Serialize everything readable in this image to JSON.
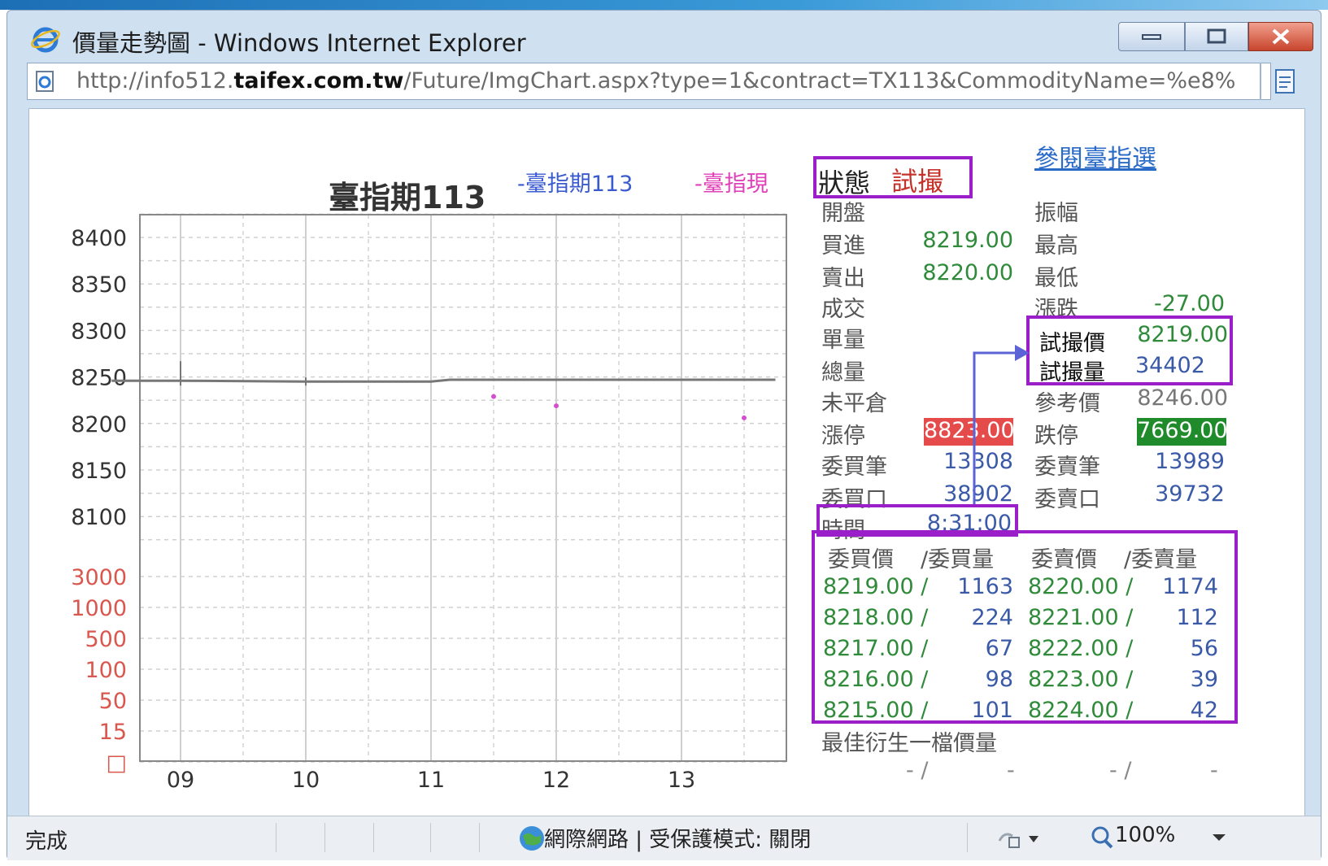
{
  "window": {
    "title": "價量走勢圖 - Windows Internet Explorer",
    "address": {
      "prefix": "http://info512.",
      "domain": "taifex.com.tw",
      "suffix": "/Future/ImgChart.aspx?type=1&contract=TX113&CommodityName=%e8%"
    }
  },
  "status_bar": {
    "done": "完成",
    "zone": "網際網路 | 受保護模式: 關閉",
    "zoom": "100%"
  },
  "chart": {
    "title": "臺指期113",
    "legend": [
      {
        "label": "-臺指期113",
        "color": "#3a5ad0"
      },
      {
        "label": "-臺指現",
        "color": "#e040b8"
      }
    ]
  },
  "chart_data": {
    "type": "line",
    "title": "臺指期113",
    "x_ticks": [
      "09",
      "10",
      "11",
      "12",
      "13"
    ],
    "y_ticks_price": [
      8400,
      8350,
      8300,
      8250,
      8200,
      8150,
      8100
    ],
    "y_ticks_volume": [
      "3000",
      "1000",
      "500",
      "100",
      "50",
      "15",
      "□"
    ],
    "ylim_price": [
      8075,
      8425
    ],
    "xlim_hours": [
      8.45,
      13.75
    ],
    "grid": true,
    "series": [
      {
        "name": "-臺指期113",
        "color": "#777777",
        "x": [
          8.45,
          9.0,
          10.0,
          11.0,
          11.15,
          12.0,
          13.0,
          13.75
        ],
        "values": [
          8246,
          8246,
          8245,
          8245,
          8247,
          8247,
          8247,
          8247
        ]
      },
      {
        "name": "-臺指現",
        "color": "#d44fd0",
        "x": [
          11.5,
          12.0,
          13.5
        ],
        "values": [
          8229,
          8219,
          8206
        ]
      }
    ]
  },
  "quote": {
    "link": "參閱臺指選",
    "status_label": "狀態",
    "status_value": "試撮",
    "labels_left": [
      "開盤",
      "買進",
      "賣出",
      "成交",
      "單量",
      "總量",
      "未平倉",
      "漲停",
      "委買筆",
      "委買口",
      "時間"
    ],
    "values_left": {
      "bid": "8219.00",
      "ask": "8220.00",
      "limit_up": "8823.00",
      "bid_count": "13308",
      "bid_lots": "38902",
      "time": "8:31:00"
    },
    "labels_right": [
      "振幅",
      "最高",
      "最低",
      "漲跌",
      "試撮價",
      "試撮量",
      "參考價",
      "跌停",
      "委賣筆",
      "委賣口"
    ],
    "values_right": {
      "change": "-27.00",
      "trial_price": "8219.00",
      "trial_volume": "34402",
      "reference": "8246.00",
      "limit_down": "7669.00",
      "ask_count": "13989",
      "ask_lots": "39732"
    }
  },
  "depth": {
    "headers": [
      "委買價",
      "/委買量",
      "委賣價",
      "/委賣量"
    ],
    "rows": [
      {
        "bid": "8219.00 /",
        "bid_qty": "1163",
        "ask": "8220.00 /",
        "ask_qty": "1174"
      },
      {
        "bid": "8218.00 /",
        "bid_qty": "224",
        "ask": "8221.00 /",
        "ask_qty": "112"
      },
      {
        "bid": "8217.00 /",
        "bid_qty": "67",
        "ask": "8222.00 /",
        "ask_qty": "56"
      },
      {
        "bid": "8216.00 /",
        "bid_qty": "98",
        "ask": "8223.00 /",
        "ask_qty": "39"
      },
      {
        "bid": "8215.00 /",
        "bid_qty": "101",
        "ask": "8224.00 /",
        "ask_qty": "42"
      }
    ]
  },
  "derivative": {
    "title": "最佳衍生一檔價量",
    "cells": [
      "- /",
      "-",
      "- /",
      "-"
    ]
  },
  "colors": {
    "highlight": "#9a1fc9",
    "arrow": "#5b63d6",
    "green_text": "#2f8a3a",
    "blue_text": "#3a5aa8",
    "limit_up_bg": "#e64b4b",
    "limit_down_bg": "#1f8b2a"
  }
}
